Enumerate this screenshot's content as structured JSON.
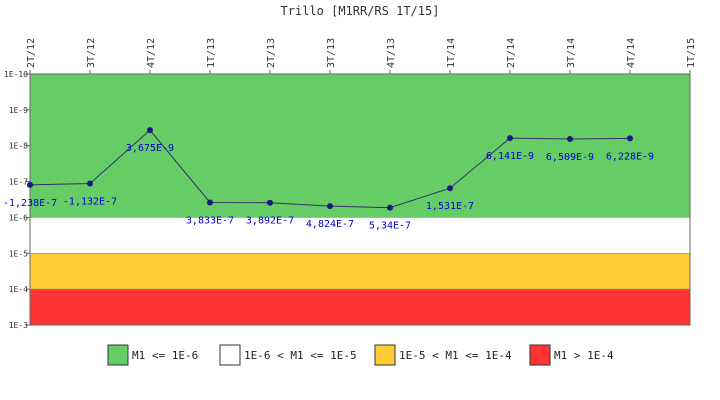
{
  "chart_data": {
    "type": "line",
    "title": "Trillo [M1RR/RS 1T/15]",
    "y_scale": "log",
    "y_inverted": true,
    "y_ticks": [
      "1E-10",
      "1E-9",
      "1E-8",
      "1E-7",
      "1E-6",
      "1E-5",
      "1E-4",
      "1E-3"
    ],
    "y_range": [
      1e-10,
      0.001
    ],
    "categories": [
      "2T/12",
      "3T/12",
      "4T/12",
      "1T/13",
      "2T/13",
      "3T/13",
      "4T/13",
      "1T/14",
      "2T/14",
      "3T/14",
      "4T/14",
      "1T/15"
    ],
    "series": [
      {
        "values": [
          -1.238e-07,
          -1.132e-07,
          3.675e-09,
          3.833e-07,
          3.892e-07,
          4.824e-07,
          5.34e-07,
          1.531e-07,
          6.141e-09,
          6.509e-09,
          6.228e-09,
          null
        ],
        "labels": [
          "-1,238E-7",
          "-1,132E-7",
          "3,675E-9",
          "3,833E-7",
          "3,892E-7",
          "4,824E-7",
          "5,34E-7",
          "1,531E-7",
          "6,141E-9",
          "6,509E-9",
          "6,228E-9",
          null
        ],
        "color": "#333366",
        "marker_color": "#1a1a80"
      }
    ],
    "bands": [
      {
        "from": 1e-10,
        "to": 1e-06,
        "color": "#66cc66",
        "legend": "M1 <= 1E-6"
      },
      {
        "from": 1e-06,
        "to": 1e-05,
        "color": "#ffffff",
        "legend": "1E-6 < M1 <= 1E-5"
      },
      {
        "from": 1e-05,
        "to": 0.0001,
        "color": "#ffcc33",
        "legend": "1E-5 < M1 <= 1E-4"
      },
      {
        "from": 0.0001,
        "to": 0.001,
        "color": "#ff3333",
        "legend": "M1 > 1E-4"
      }
    ],
    "legend_position": "bottom",
    "grid": false
  }
}
